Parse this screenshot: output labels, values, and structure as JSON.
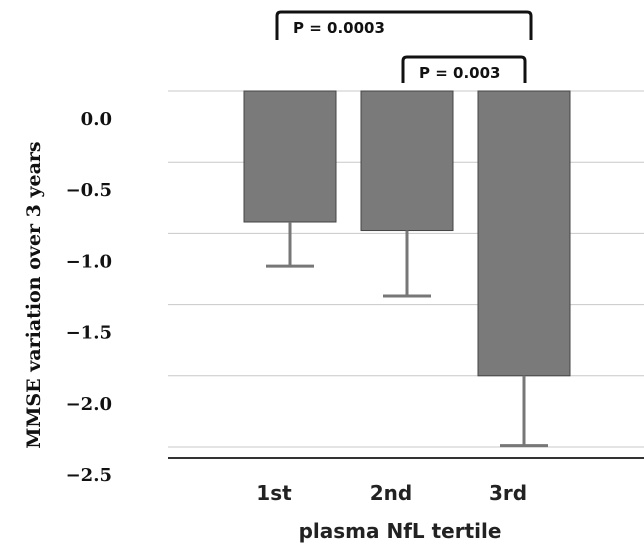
{
  "chart_data": {
    "type": "bar",
    "categories": [
      "1st",
      "2nd",
      "3rd"
    ],
    "values": [
      -0.92,
      -0.98,
      -2.0
    ],
    "errors": [
      0.31,
      0.46,
      0.49
    ],
    "ylabel": "MMSE variation over 3 years",
    "xlabel": "plasma NfL tertile",
    "ylim": [
      -2.5,
      0.0
    ],
    "yticks": [
      0.0,
      -0.5,
      -1.0,
      -1.5,
      -2.0,
      -2.5
    ],
    "ytick_labels": [
      "0.0",
      "−0.5",
      "−1.0",
      "−1.5",
      "−2.0",
      "−2.5"
    ],
    "grid": true,
    "bar_color": "#7a7a7a",
    "comparisons": [
      {
        "from": "1st",
        "to": "3rd",
        "label": "P = 0.0003"
      },
      {
        "from": "2nd",
        "to": "3rd",
        "label": "P = 0.003"
      }
    ]
  }
}
